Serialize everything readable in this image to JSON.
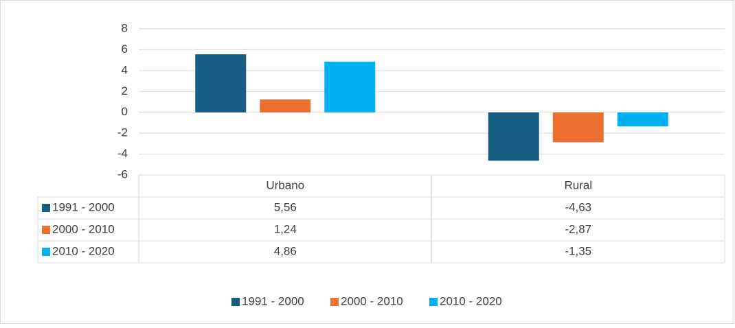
{
  "chart_data": {
    "type": "bar",
    "categories": [
      "Urbano",
      "Rural"
    ],
    "series": [
      {
        "name": "1991 - 2000",
        "color": "#175e82",
        "values": [
          5.56,
          -4.63
        ],
        "value_labels": [
          "5,56",
          "-4,63"
        ]
      },
      {
        "name": "2000 - 2010",
        "color": "#ed7030",
        "values": [
          1.24,
          -2.87
        ],
        "value_labels": [
          "1,24",
          "-2,87"
        ]
      },
      {
        "name": "2010 - 2020",
        "color": "#00b0f0",
        "values": [
          4.86,
          -1.35
        ],
        "value_labels": [
          "4,86",
          "-1,35"
        ]
      }
    ],
    "ylim": [
      -6,
      8
    ],
    "yticks": [
      -6,
      -4,
      -2,
      0,
      2,
      4,
      6,
      8
    ],
    "grid": true,
    "legend": "bottom"
  }
}
